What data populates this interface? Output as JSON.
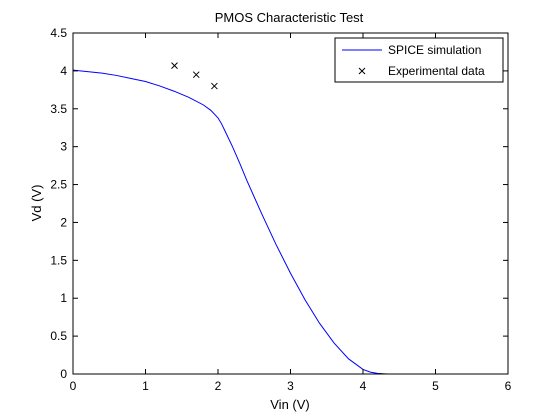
{
  "chart_data": {
    "type": "line",
    "title": "PMOS Characteristic Test",
    "xlabel": "Vin (V)",
    "ylabel": "Vd (V)",
    "xlim": [
      0,
      6
    ],
    "ylim": [
      0,
      4.5
    ],
    "x_ticks": [
      "0",
      "1",
      "2",
      "3",
      "4",
      "5",
      "6"
    ],
    "y_ticks": [
      "0",
      "0.5",
      "1",
      "1.5",
      "2",
      "2.5",
      "3",
      "3.5",
      "4",
      "4.5"
    ],
    "grid": false,
    "legend_position": "top-right",
    "series": [
      {
        "name": "SPICE simulation",
        "kind": "line",
        "color": "#0000ff",
        "x": [
          0,
          0.2,
          0.4,
          0.6,
          0.8,
          1.0,
          1.2,
          1.4,
          1.6,
          1.8,
          1.9,
          2.0,
          2.05,
          2.1,
          2.2,
          2.3,
          2.4,
          2.6,
          2.8,
          3.0,
          3.2,
          3.4,
          3.6,
          3.8,
          4.0,
          4.1,
          4.2,
          4.3,
          4.35,
          4.5,
          4.8,
          5.1
        ],
        "y": [
          4.01,
          3.99,
          3.97,
          3.94,
          3.9,
          3.86,
          3.8,
          3.73,
          3.65,
          3.55,
          3.48,
          3.38,
          3.3,
          3.2,
          3.0,
          2.78,
          2.55,
          2.12,
          1.71,
          1.33,
          0.98,
          0.67,
          0.41,
          0.2,
          0.06,
          0.025,
          0.008,
          0.002,
          0.0,
          0.0,
          0.0,
          0.0
        ]
      },
      {
        "name": "Experimental data",
        "kind": "scatter",
        "marker": "x",
        "color": "#000000",
        "x": [
          1.4,
          1.7,
          1.95
        ],
        "y": [
          4.07,
          3.95,
          3.8
        ]
      }
    ]
  }
}
